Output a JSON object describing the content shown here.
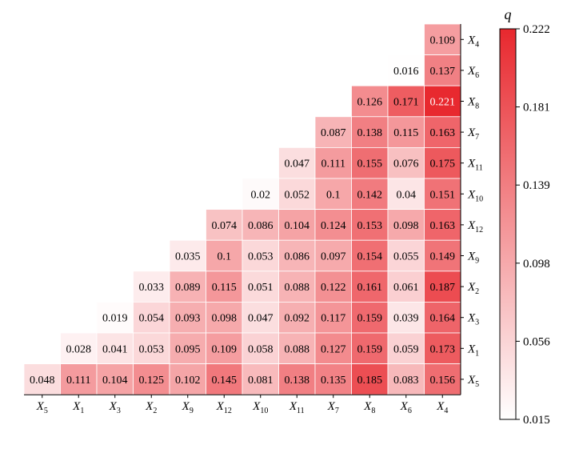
{
  "chart_data": {
    "type": "heatmap",
    "layout": "lower-triangle",
    "x_categories": [
      "X5",
      "X1",
      "X3",
      "X2",
      "X9",
      "X12",
      "X10",
      "X11",
      "X7",
      "X8",
      "X6",
      "X4"
    ],
    "y_categories": [
      "X4",
      "X6",
      "X8",
      "X7",
      "X11",
      "X10",
      "X12",
      "X9",
      "X2",
      "X3",
      "X1",
      "X5"
    ],
    "x_labels": [
      {
        "base": "X",
        "sub": "5"
      },
      {
        "base": "X",
        "sub": "1"
      },
      {
        "base": "X",
        "sub": "3"
      },
      {
        "base": "X",
        "sub": "2"
      },
      {
        "base": "X",
        "sub": "9"
      },
      {
        "base": "X",
        "sub": "12"
      },
      {
        "base": "X",
        "sub": "10"
      },
      {
        "base": "X",
        "sub": "11"
      },
      {
        "base": "X",
        "sub": "7"
      },
      {
        "base": "X",
        "sub": "8"
      },
      {
        "base": "X",
        "sub": "6"
      },
      {
        "base": "X",
        "sub": "4"
      }
    ],
    "y_labels": [
      {
        "base": "X",
        "sub": "4"
      },
      {
        "base": "X",
        "sub": "6"
      },
      {
        "base": "X",
        "sub": "8"
      },
      {
        "base": "X",
        "sub": "7"
      },
      {
        "base": "X",
        "sub": "11"
      },
      {
        "base": "X",
        "sub": "10"
      },
      {
        "base": "X",
        "sub": "12"
      },
      {
        "base": "X",
        "sub": "9"
      },
      {
        "base": "X",
        "sub": "2"
      },
      {
        "base": "X",
        "sub": "3"
      },
      {
        "base": "X",
        "sub": "1"
      },
      {
        "base": "X",
        "sub": "5"
      }
    ],
    "values": [
      [
        null,
        null,
        null,
        null,
        null,
        null,
        null,
        null,
        null,
        null,
        null,
        "0.109"
      ],
      [
        null,
        null,
        null,
        null,
        null,
        null,
        null,
        null,
        null,
        null,
        "0.016",
        "0.137"
      ],
      [
        null,
        null,
        null,
        null,
        null,
        null,
        null,
        null,
        null,
        "0.126",
        "0.171",
        "0.221"
      ],
      [
        null,
        null,
        null,
        null,
        null,
        null,
        null,
        null,
        "0.087",
        "0.138",
        "0.115",
        "0.163"
      ],
      [
        null,
        null,
        null,
        null,
        null,
        null,
        null,
        "0.047",
        "0.111",
        "0.155",
        "0.076",
        "0.175"
      ],
      [
        null,
        null,
        null,
        null,
        null,
        null,
        "0.02",
        "0.052",
        "0.1",
        "0.142",
        "0.04",
        "0.151"
      ],
      [
        null,
        null,
        null,
        null,
        null,
        "0.074",
        "0.086",
        "0.104",
        "0.124",
        "0.153",
        "0.098",
        "0.163"
      ],
      [
        null,
        null,
        null,
        null,
        "0.035",
        "0.1",
        "0.053",
        "0.086",
        "0.097",
        "0.154",
        "0.055",
        "0.149"
      ],
      [
        null,
        null,
        null,
        "0.033",
        "0.089",
        "0.115",
        "0.051",
        "0.088",
        "0.122",
        "0.161",
        "0.061",
        "0.187"
      ],
      [
        null,
        null,
        "0.019",
        "0.054",
        "0.093",
        "0.098",
        "0.047",
        "0.092",
        "0.117",
        "0.159",
        "0.039",
        "0.164"
      ],
      [
        null,
        "0.028",
        "0.041",
        "0.053",
        "0.095",
        "0.109",
        "0.058",
        "0.088",
        "0.127",
        "0.159",
        "0.059",
        "0.173"
      ],
      [
        "0.048",
        "0.111",
        "0.104",
        "0.125",
        "0.102",
        "0.145",
        "0.081",
        "0.138",
        "0.135",
        "0.185",
        "0.083",
        "0.156"
      ]
    ],
    "colorbar": {
      "title": "q",
      "min": 0.015,
      "max": 0.222,
      "ticks": [
        "0.222",
        "0.181",
        "0.139",
        "0.098",
        "0.056",
        "0.015"
      ],
      "color_low": "#ffffff",
      "color_high": "#e8282e"
    }
  }
}
